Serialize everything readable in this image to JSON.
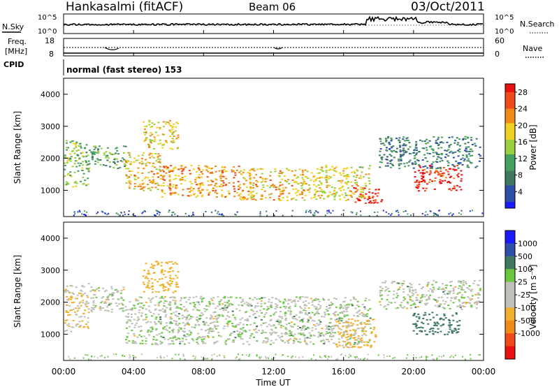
{
  "header": {
    "station": "Hankasalmi (fitACF)",
    "beam": "Beam 06",
    "date": "03/Oct/2011"
  },
  "noise_panel": {
    "left_label": "N.Sky",
    "right_label": "N.Search",
    "left_ticks": [
      "10^5",
      "10^0"
    ],
    "right_ticks": [
      "10^5",
      "10^0"
    ]
  },
  "freq_panel": {
    "left_label_line1": "Freq.",
    "left_label_line2": "[MHz]",
    "left_ticks": [
      "18",
      "8"
    ],
    "right_label": "Nave",
    "right_ticks": [
      "60",
      "0"
    ]
  },
  "cpid": {
    "label": "CPID",
    "value": "normal (fast stereo) 153"
  },
  "colors": {
    "power_scale": [
      "#1a1aff",
      "#2f4fa8",
      "#3f7a60",
      "#48a060",
      "#9ad040",
      "#f0d020",
      "#f08a18",
      "#f04a18",
      "#e81010"
    ],
    "velocity_scale": [
      "#e81010",
      "#f04a18",
      "#f08a18",
      "#f0b030",
      "#c0c0b8",
      "#c0c0b8",
      "#6ac840",
      "#3f7a60",
      "#2f4fa8",
      "#1a1aff"
    ],
    "ground_scatter": "#bfbfb8"
  },
  "chart_data": [
    {
      "type": "heatmap",
      "title": "",
      "ylabel": "Slant Range [km]",
      "ylim": [
        180,
        4500
      ],
      "y_ticks": [
        "4000",
        "3000",
        "2000",
        "1000"
      ],
      "y_tick_values": [
        4000,
        3000,
        2000,
        1000
      ],
      "xlim_hours": [
        0,
        24
      ],
      "colorbar": {
        "label": "Power [dB]",
        "ticks": [
          "28",
          "24",
          "20",
          "16",
          "12",
          "8",
          "4"
        ],
        "range": [
          0,
          30
        ]
      },
      "scatter_bands": [
        {
          "start_h": 0.0,
          "end_h": 1.4,
          "range_lo": 1100,
          "range_hi": 2600,
          "power_db": 14
        },
        {
          "start_h": 1.4,
          "end_h": 3.5,
          "range_lo": 1700,
          "range_hi": 2400,
          "power_db": 12
        },
        {
          "start_h": 3.5,
          "end_h": 5.5,
          "range_lo": 1000,
          "range_hi": 2200,
          "power_db": 20
        },
        {
          "start_h": 5.5,
          "end_h": 10.0,
          "range_lo": 800,
          "range_hi": 1800,
          "power_db": 22
        },
        {
          "start_h": 10.0,
          "end_h": 14.5,
          "range_lo": 700,
          "range_hi": 1700,
          "power_db": 20
        },
        {
          "start_h": 14.5,
          "end_h": 17.5,
          "range_lo": 700,
          "range_hi": 1800,
          "power_db": 18
        },
        {
          "start_h": 16.5,
          "end_h": 18.2,
          "range_lo": 600,
          "range_hi": 1100,
          "power_db": 28
        },
        {
          "start_h": 4.5,
          "end_h": 6.5,
          "range_lo": 2300,
          "range_hi": 3200,
          "power_db": 18
        },
        {
          "start_h": 20.0,
          "end_h": 22.7,
          "range_lo": 1000,
          "range_hi": 1800,
          "power_db": 28
        },
        {
          "start_h": 18.0,
          "end_h": 23.8,
          "range_lo": 1700,
          "range_hi": 2700,
          "power_db": 8
        }
      ]
    },
    {
      "type": "heatmap",
      "title": "",
      "ylabel": "Slant Range [km]",
      "ylim": [
        180,
        4500
      ],
      "y_ticks": [
        "4000",
        "3000",
        "2000",
        "1000"
      ],
      "y_tick_values": [
        4000,
        3000,
        2000,
        1000
      ],
      "xlabel": "Time UT",
      "x_ticks": [
        "00:00",
        "04:00",
        "08:00",
        "12:00",
        "16:00",
        "20:00",
        "00:00"
      ],
      "x_tick_hours": [
        0,
        4,
        8,
        12,
        16,
        20,
        24
      ],
      "colorbar": {
        "label": "Velocity [m s⁻¹]",
        "ticks": [
          "1000",
          "500",
          "100",
          "25",
          "-25",
          "-100",
          "-500",
          "-1000"
        ]
      },
      "scatter_bands": [
        {
          "start_h": 0.0,
          "end_h": 1.4,
          "range_lo": 1100,
          "range_hi": 2600,
          "velocity": -100
        },
        {
          "start_h": 1.4,
          "end_h": 3.5,
          "range_lo": 1700,
          "range_hi": 2500,
          "velocity": 0
        },
        {
          "start_h": 3.5,
          "end_h": 17.5,
          "range_lo": 700,
          "range_hi": 2200,
          "velocity": 0
        },
        {
          "start_h": 4.5,
          "end_h": 6.5,
          "range_lo": 2300,
          "range_hi": 3300,
          "velocity": -300
        },
        {
          "start_h": 15.5,
          "end_h": 17.8,
          "range_lo": 600,
          "range_hi": 1500,
          "velocity": -150
        },
        {
          "start_h": 19.8,
          "end_h": 22.6,
          "range_lo": 1000,
          "range_hi": 1700,
          "velocity": 400
        },
        {
          "start_h": 18.0,
          "end_h": 23.8,
          "range_lo": 1800,
          "range_hi": 2700,
          "velocity": 0
        }
      ]
    }
  ]
}
